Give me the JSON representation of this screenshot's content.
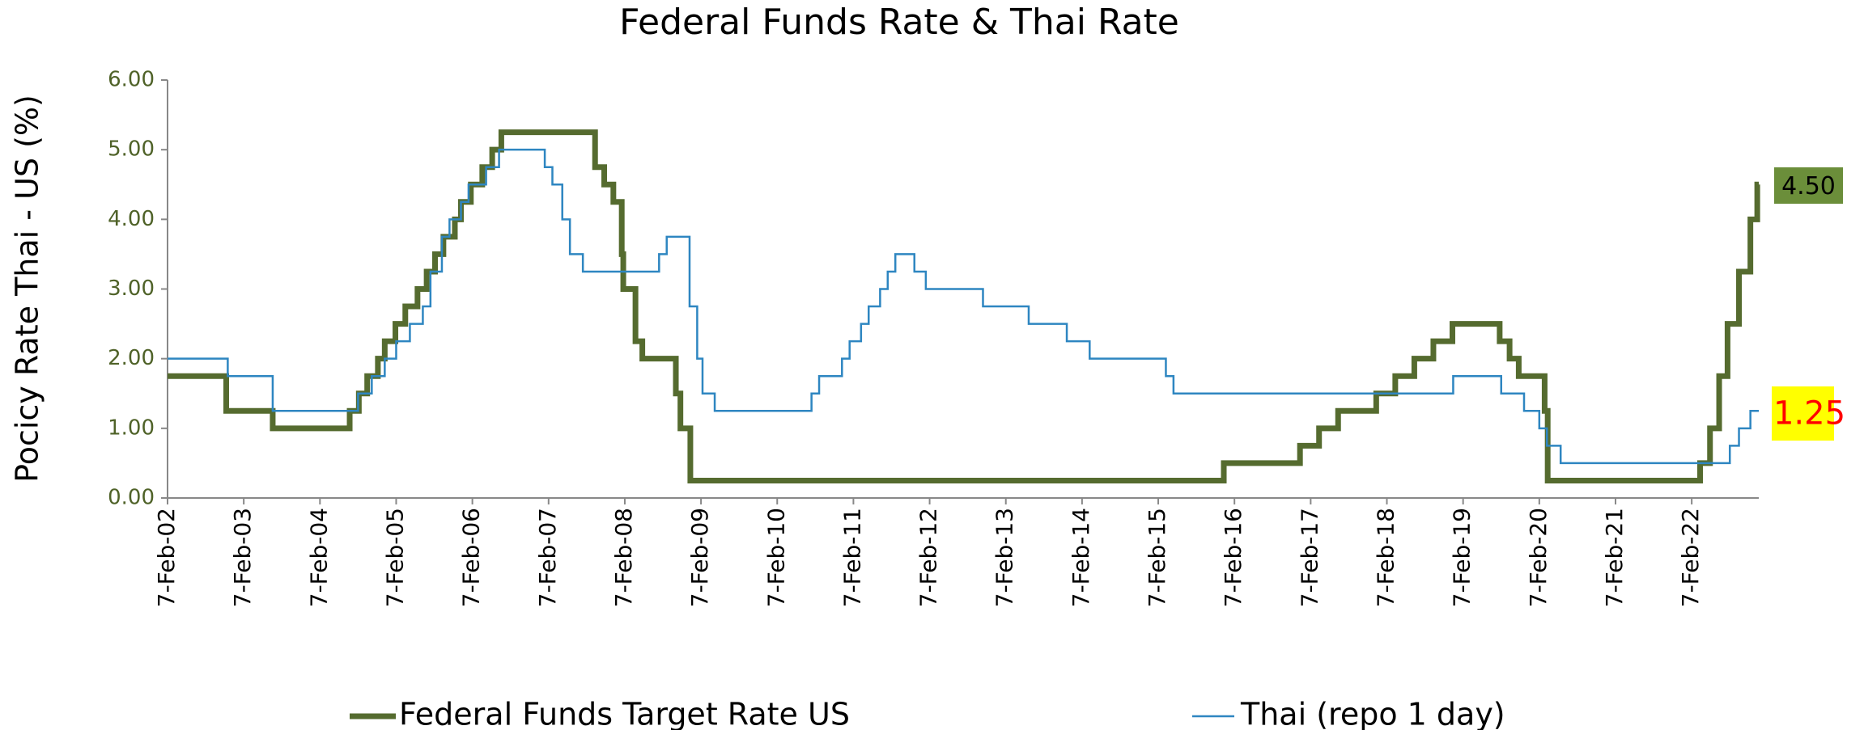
{
  "chart_data": {
    "type": "line",
    "step": true,
    "title": "Federal Funds Rate & Thai Rate",
    "y_label": "Pocicy Rate  Thai  - US  (%)",
    "xlim": [
      2002.1,
      2022.98
    ],
    "xticks": [
      {
        "value": 2002.1,
        "label": "7-Feb-02"
      },
      {
        "value": 2003.1,
        "label": "7-Feb-03"
      },
      {
        "value": 2004.1,
        "label": "7-Feb-04"
      },
      {
        "value": 2005.1,
        "label": "7-Feb-05"
      },
      {
        "value": 2006.1,
        "label": "7-Feb-06"
      },
      {
        "value": 2007.1,
        "label": "7-Feb-07"
      },
      {
        "value": 2008.1,
        "label": "7-Feb-08"
      },
      {
        "value": 2009.1,
        "label": "7-Feb-09"
      },
      {
        "value": 2010.1,
        "label": "7-Feb-10"
      },
      {
        "value": 2011.1,
        "label": "7-Feb-11"
      },
      {
        "value": 2012.1,
        "label": "7-Feb-12"
      },
      {
        "value": 2013.1,
        "label": "7-Feb-13"
      },
      {
        "value": 2014.1,
        "label": "7-Feb-14"
      },
      {
        "value": 2015.1,
        "label": "7-Feb-15"
      },
      {
        "value": 2016.1,
        "label": "7-Feb-16"
      },
      {
        "value": 2017.1,
        "label": "7-Feb-17"
      },
      {
        "value": 2018.1,
        "label": "7-Feb-18"
      },
      {
        "value": 2019.1,
        "label": "7-Feb-19"
      },
      {
        "value": 2020.1,
        "label": "7-Feb-20"
      },
      {
        "value": 2021.1,
        "label": "7-Feb-21"
      },
      {
        "value": 2022.1,
        "label": "7-Feb-22"
      }
    ],
    "ylim": [
      0,
      6
    ],
    "yticks": [
      {
        "value": 0,
        "label": "0.00"
      },
      {
        "value": 1,
        "label": "1.00"
      },
      {
        "value": 2,
        "label": "2.00"
      },
      {
        "value": 3,
        "label": "3.00"
      },
      {
        "value": 4,
        "label": "4.00"
      },
      {
        "value": 5,
        "label": "5.00"
      },
      {
        "value": 6,
        "label": "6.00"
      }
    ],
    "series": [
      {
        "name": "Federal Funds Target Rate US",
        "color": "#556b2f",
        "last_label": "4.50",
        "label_bg": "#6b8e3a",
        "label_color": "#000000",
        "x": [
          2002.1,
          2002.87,
          2003.48,
          2004.49,
          2004.61,
          2004.72,
          2004.86,
          2004.95,
          2005.09,
          2005.22,
          2005.38,
          2005.5,
          2005.61,
          2005.72,
          2005.87,
          2005.95,
          2006.08,
          2006.23,
          2006.36,
          2006.48,
          2007.71,
          2007.83,
          2007.95,
          2008.06,
          2008.08,
          2008.24,
          2008.33,
          2008.77,
          2008.83,
          2008.96,
          2015.96,
          2016.96,
          2017.21,
          2017.46,
          2017.96,
          2018.21,
          2018.46,
          2018.71,
          2018.96,
          2019.58,
          2019.71,
          2019.83,
          2020.17,
          2020.21,
          2022.21,
          2022.34,
          2022.46,
          2022.57,
          2022.72,
          2022.87,
          2022.96,
          2022.98
        ],
        "values": [
          1.75,
          1.25,
          1.0,
          1.25,
          1.5,
          1.75,
          2.0,
          2.25,
          2.5,
          2.75,
          3.0,
          3.25,
          3.5,
          3.75,
          4.0,
          4.25,
          4.5,
          4.75,
          5.0,
          5.25,
          4.75,
          4.5,
          4.25,
          3.5,
          3.0,
          2.25,
          2.0,
          1.5,
          1.0,
          0.25,
          0.5,
          0.75,
          1.0,
          1.25,
          1.5,
          1.75,
          2.0,
          2.25,
          2.5,
          2.25,
          2.0,
          1.75,
          1.25,
          0.25,
          0.5,
          1.0,
          1.75,
          2.5,
          3.25,
          4.0,
          4.5,
          4.5
        ]
      },
      {
        "name": "Thai (repo 1 day)",
        "color": "#2e86c1",
        "last_label": "1.25",
        "label_bg": "#ffff00",
        "label_color": "#ff0000",
        "x": [
          2002.1,
          2002.89,
          2003.48,
          2004.6,
          2004.78,
          2004.95,
          2005.1,
          2005.28,
          2005.45,
          2005.55,
          2005.7,
          2005.8,
          2005.95,
          2006.05,
          2006.28,
          2006.45,
          2007.05,
          2007.15,
          2007.28,
          2007.38,
          2007.55,
          2008.55,
          2008.65,
          2008.95,
          2009.05,
          2009.12,
          2009.28,
          2010.55,
          2010.65,
          2010.95,
          2011.05,
          2011.2,
          2011.3,
          2011.45,
          2011.55,
          2011.65,
          2011.9,
          2012.05,
          2012.8,
          2013.4,
          2013.9,
          2014.2,
          2015.2,
          2015.3,
          2018.97,
          2019.6,
          2019.9,
          2020.1,
          2020.2,
          2020.38,
          2022.6,
          2022.72,
          2022.87,
          2022.98
        ],
        "values": [
          2.0,
          1.75,
          1.25,
          1.5,
          1.75,
          2.0,
          2.25,
          2.5,
          2.75,
          3.25,
          3.75,
          4.0,
          4.25,
          4.5,
          4.75,
          5.0,
          4.75,
          4.5,
          4.0,
          3.5,
          3.25,
          3.5,
          3.75,
          2.75,
          2.0,
          1.5,
          1.25,
          1.5,
          1.75,
          2.0,
          2.25,
          2.5,
          2.75,
          3.0,
          3.25,
          3.5,
          3.25,
          3.0,
          2.75,
          2.5,
          2.25,
          2.0,
          1.75,
          1.5,
          1.75,
          1.5,
          1.25,
          1.0,
          0.75,
          0.5,
          0.75,
          1.0,
          1.25,
          1.25
        ]
      }
    ]
  }
}
